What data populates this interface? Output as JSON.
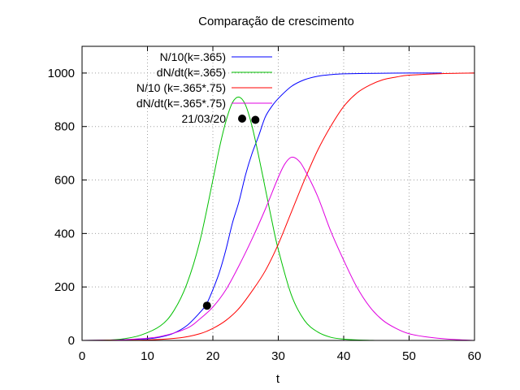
{
  "chart_data": {
    "type": "line",
    "title": "Comparação de crescimento",
    "xlabel": "t",
    "ylabel": "",
    "xlim": [
      0,
      60
    ],
    "ylim": [
      0,
      1100
    ],
    "x_ticks": [
      0,
      10,
      20,
      30,
      40,
      50,
      60
    ],
    "y_ticks": [
      0,
      200,
      400,
      600,
      800,
      1000
    ],
    "grid": true,
    "legend_position": "top-left",
    "series": [
      {
        "name": "N/10(k=.365)",
        "color": "#0000ff",
        "x": [
          0,
          5,
          10,
          12,
          14,
          16,
          18,
          19,
          20,
          21,
          22,
          23,
          24,
          25,
          26,
          27,
          28,
          29,
          30,
          32,
          34,
          36,
          38,
          40,
          45,
          50,
          55
        ],
        "y": [
          0,
          2,
          6,
          13,
          27,
          55,
          104,
          135,
          190,
          255,
          340,
          440,
          520,
          620,
          700,
          765,
          835,
          875,
          905,
          950,
          975,
          988,
          994,
          997,
          999,
          1000,
          1000
        ]
      },
      {
        "name": "dN/dt(k=.365)",
        "color": "#00c000",
        "x": [
          3,
          6,
          9,
          12,
          14,
          16,
          18,
          20,
          21,
          22,
          23,
          24,
          25,
          26,
          27,
          28,
          29,
          30,
          32,
          34,
          36,
          38,
          40,
          42,
          45
        ],
        "y": [
          0,
          5,
          20,
          55,
          110,
          210,
          370,
          600,
          720,
          820,
          890,
          910,
          880,
          800,
          690,
          570,
          450,
          340,
          170,
          75,
          32,
          12,
          5,
          2,
          0
        ]
      },
      {
        "name": "N/10 (k=.365*.75)",
        "color": "#ff0000",
        "x": [
          0,
          5,
          10,
          15,
          18,
          20,
          22,
          24,
          26,
          28,
          30,
          32,
          34,
          36,
          38,
          40,
          42,
          44,
          46,
          48,
          50,
          55,
          60
        ],
        "y": [
          0,
          1,
          2,
          10,
          25,
          45,
          75,
          120,
          185,
          260,
          360,
          480,
          600,
          710,
          800,
          875,
          925,
          955,
          975,
          985,
          992,
          998,
          1000
        ]
      },
      {
        "name": "dN/dt(k=.365*.75)",
        "color": "#e000e0",
        "x": [
          4,
          8,
          12,
          16,
          18,
          20,
          22,
          24,
          26,
          28,
          30,
          31,
          32,
          33,
          34,
          36,
          38,
          40,
          42,
          44,
          46,
          48,
          50,
          53,
          56,
          60
        ],
        "y": [
          0,
          5,
          15,
          45,
          80,
          125,
          190,
          280,
          380,
          490,
          610,
          660,
          685,
          675,
          640,
          540,
          410,
          300,
          200,
          125,
          75,
          45,
          25,
          12,
          5,
          0
        ]
      },
      {
        "name": "21/03/20",
        "color": "#000000",
        "style": "points",
        "x": [
          19.1,
          26.5
        ],
        "y": [
          130,
          825
        ]
      }
    ]
  }
}
